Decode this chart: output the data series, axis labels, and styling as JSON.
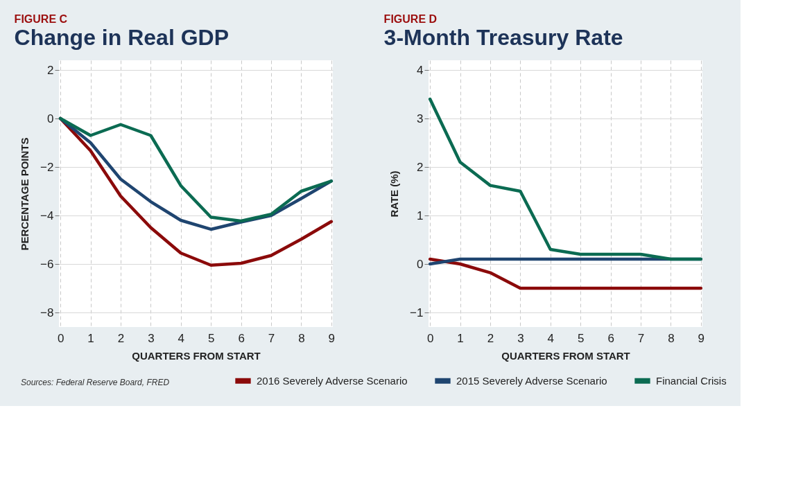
{
  "chart_data": [
    {
      "type": "line",
      "subtitle": "FIGURE C",
      "title": "Change in Real GDP",
      "xlabel": "QUARTERS FROM START",
      "ylabel": "PERCENTAGE POINTS",
      "x": [
        0,
        1,
        2,
        3,
        4,
        5,
        6,
        7,
        8,
        9
      ],
      "series": [
        {
          "name": "2016 Severely Adverse Scenario",
          "color": "#8b0a0a",
          "values": [
            0,
            -1.33,
            -3.2,
            -4.5,
            -5.55,
            -6.05,
            -5.97,
            -5.65,
            -4.98,
            -4.25
          ]
        },
        {
          "name": "2015 Severely Adverse Scenario",
          "color": "#1f4570",
          "values": [
            0,
            -1.0,
            -2.5,
            -3.43,
            -4.2,
            -4.57,
            -4.27,
            -4.0,
            -3.3,
            -2.58
          ]
        },
        {
          "name": "Financial Crisis",
          "color": "#0b6b52",
          "values": [
            0,
            -0.7,
            -0.25,
            -0.7,
            -2.77,
            -4.07,
            -4.23,
            -3.95,
            -3.0,
            -2.58
          ]
        }
      ],
      "xlim": [
        -0.05,
        9.05
      ],
      "xticks": [
        0,
        1,
        2,
        3,
        4,
        5,
        6,
        7,
        8,
        9
      ],
      "ylim": [
        -8.6,
        2.4
      ],
      "yticks": [
        -8,
        -6,
        -4,
        -2,
        0,
        2
      ],
      "grid": true,
      "legend": "bottom",
      "marker": "none",
      "line_style": "solid",
      "annotations": [
        "Sources: Federal Reserve Board, FRED"
      ]
    },
    {
      "type": "line",
      "subtitle": "FIGURE D",
      "title": "3-Month Treasury Rate",
      "xlabel": "QUARTERS FROM START",
      "ylabel": "RATE (%)",
      "x": [
        0,
        1,
        2,
        3,
        4,
        5,
        6,
        7,
        8,
        9
      ],
      "series": [
        {
          "name": "2016 Severely Adverse Scenario",
          "color": "#8b0a0a",
          "values": [
            0.1,
            0.0,
            -0.18,
            -0.5,
            -0.5,
            -0.5,
            -0.5,
            -0.5,
            -0.5,
            -0.5
          ]
        },
        {
          "name": "2015 Severely Adverse Scenario",
          "color": "#1f4570",
          "values": [
            0,
            0.1,
            0.1,
            0.1,
            0.1,
            0.1,
            0.1,
            0.1,
            0.1,
            0.1
          ]
        },
        {
          "name": "Financial Crisis",
          "color": "#0b6b52",
          "values": [
            3.4,
            2.1,
            1.62,
            1.5,
            0.3,
            0.2,
            0.2,
            0.2,
            0.1,
            0.1
          ]
        }
      ],
      "xlim": [
        -0.05,
        9.05
      ],
      "xticks": [
        0,
        1,
        2,
        3,
        4,
        5,
        6,
        7,
        8,
        9
      ],
      "ylim": [
        -1.3,
        4.2
      ],
      "yticks": [
        -1,
        0,
        1,
        2,
        3,
        4
      ],
      "grid": true,
      "legend": "bottom",
      "marker": "none",
      "line_style": "solid"
    }
  ]
}
